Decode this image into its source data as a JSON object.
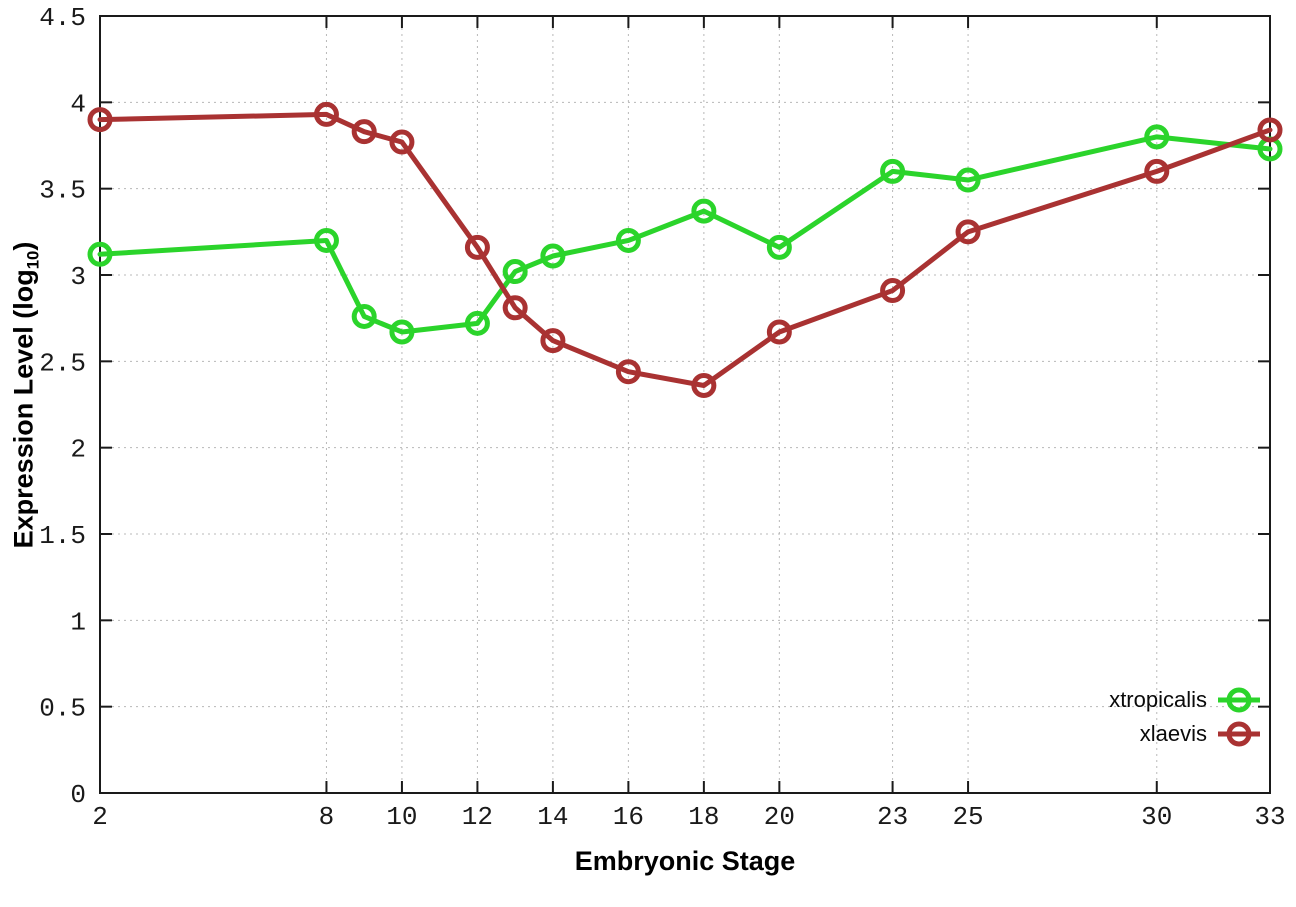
{
  "chart_data": {
    "type": "line",
    "title": "",
    "xlabel": "Embryonic Stage",
    "ylabel": "Expression Level (log10)",
    "ylabel_parts": {
      "prefix": "Expression Level (log",
      "subscript": "10",
      "suffix": ")"
    },
    "x": [
      2,
      8,
      9,
      10,
      12,
      13,
      14,
      16,
      18,
      20,
      23,
      25,
      30,
      33
    ],
    "series": [
      {
        "name": "xtropicalis",
        "color": "#2bd42b",
        "values": [
          3.12,
          3.2,
          2.76,
          2.67,
          2.72,
          3.02,
          3.11,
          3.2,
          3.37,
          3.16,
          3.6,
          3.55,
          3.8,
          3.73
        ]
      },
      {
        "name": "xlaevis",
        "color": "#a93232",
        "values": [
          3.9,
          3.93,
          3.83,
          3.77,
          3.16,
          2.81,
          2.62,
          2.44,
          2.36,
          2.67,
          2.91,
          3.25,
          3.6,
          3.84
        ]
      }
    ],
    "xlim": [
      2,
      33
    ],
    "ylim": [
      0,
      4.5
    ],
    "x_tick_labels": [
      "2",
      "8",
      "10",
      "12",
      "14",
      "16",
      "18",
      "20",
      "23",
      "25",
      "30",
      "33"
    ],
    "x_tick_values": [
      2,
      8,
      10,
      12,
      14,
      16,
      18,
      20,
      23,
      25,
      30,
      33
    ],
    "y_tick_labels": [
      "0",
      "0.5",
      "1",
      "1.5",
      "2",
      "2.5",
      "3",
      "3.5",
      "4",
      "4.5"
    ],
    "y_tick_values": [
      0,
      0.5,
      1,
      1.5,
      2,
      2.5,
      3,
      3.5,
      4,
      4.5
    ],
    "grid": true,
    "legend_position": "inside-bottom-right",
    "colors": {
      "grid": "#b8b8b8",
      "axis": "#1a1a1a",
      "tick_text": "#1a1a1a"
    }
  }
}
